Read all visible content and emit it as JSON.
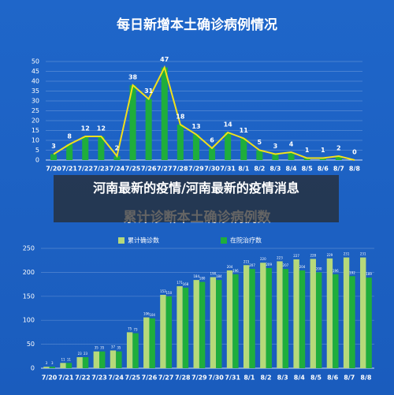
{
  "chart_data": [
    {
      "type": "bar_line",
      "title": "每日新增本土确诊病例情况",
      "categories": [
        "7/20",
        "7/21",
        "7/22",
        "7/23",
        "7/24",
        "7/25",
        "7/26",
        "7/27",
        "7/28",
        "7/29",
        "7/30",
        "7/31",
        "8/1",
        "8/2",
        "8/3",
        "8/4",
        "8/5",
        "8/6",
        "8/7",
        "8/8"
      ],
      "values": [
        3,
        8,
        12,
        12,
        2,
        38,
        31,
        47,
        18,
        13,
        6,
        14,
        11,
        5,
        3,
        4,
        1,
        1,
        2,
        0
      ],
      "color": "#1fae3c",
      "line_color": "#f2e01a",
      "ylim": [
        0,
        50
      ],
      "yticks": [
        0,
        5,
        10,
        15,
        20,
        25,
        30,
        35,
        40,
        45,
        50
      ],
      "grid": true
    },
    {
      "type": "bar",
      "title": "累计诊断本土确诊病例数",
      "categories": [
        "7/20",
        "7/21",
        "7/22",
        "7/23",
        "7/24",
        "7/25",
        "7/26",
        "7/27",
        "7/28",
        "7/29",
        "7/30",
        "7/31",
        "8/1",
        "8/2",
        "8/3",
        "8/4",
        "8/5",
        "8/6",
        "8/7",
        "8/8"
      ],
      "series": [
        {
          "name": "累计确诊数",
          "color": "#b6d97a",
          "values": [
            3,
            11,
            23,
            35,
            37,
            75,
            106,
            153,
            171,
            184,
            190,
            204,
            215,
            220,
            223,
            227,
            228,
            229,
            231,
            231
          ]
        },
        {
          "name": "在院治疗数",
          "color": "#1fae3c",
          "values": [
            3,
            11,
            23,
            35,
            35,
            73,
            104,
            150,
            168,
            180,
            184,
            196,
            207,
            209,
            207,
            204,
            200,
            196,
            192,
            189
          ]
        }
      ],
      "legend": "top",
      "ylim": [
        0,
        250
      ],
      "yticks": [
        0,
        50,
        100,
        150,
        200,
        250
      ],
      "grid": true
    }
  ],
  "caption": "河南最新的疫情/河南最新的疫情消息"
}
